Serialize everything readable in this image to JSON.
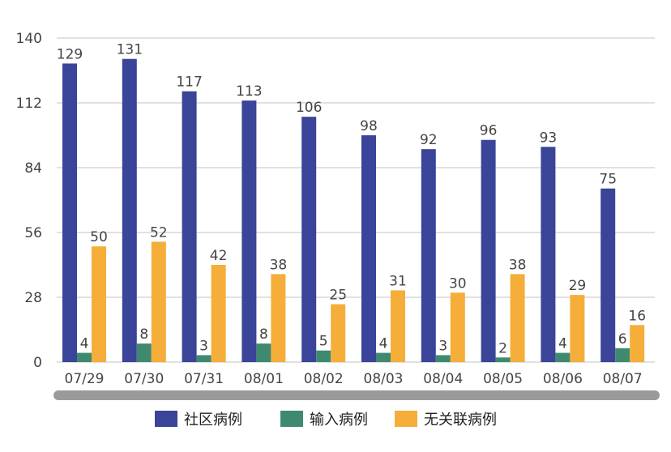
{
  "chart_data": {
    "type": "bar",
    "categories": [
      "07/29",
      "07/30",
      "07/31",
      "08/01",
      "08/02",
      "08/03",
      "08/04",
      "08/05",
      "08/06",
      "08/07"
    ],
    "series": [
      {
        "name": "社区病例",
        "color": "#3a4499",
        "values": [
          129,
          131,
          117,
          113,
          106,
          98,
          92,
          96,
          93,
          75
        ]
      },
      {
        "name": "输入病例",
        "color": "#3f8a6f",
        "values": [
          4,
          8,
          3,
          8,
          5,
          4,
          3,
          2,
          4,
          6
        ]
      },
      {
        "name": "无关联病例",
        "color": "#f5ae3a",
        "values": [
          50,
          52,
          42,
          38,
          25,
          31,
          30,
          38,
          29,
          16
        ]
      }
    ],
    "ylim": [
      0,
      140
    ],
    "yticks": [
      0,
      28,
      56,
      84,
      112,
      140
    ],
    "grid": true,
    "legend": "bottom"
  }
}
